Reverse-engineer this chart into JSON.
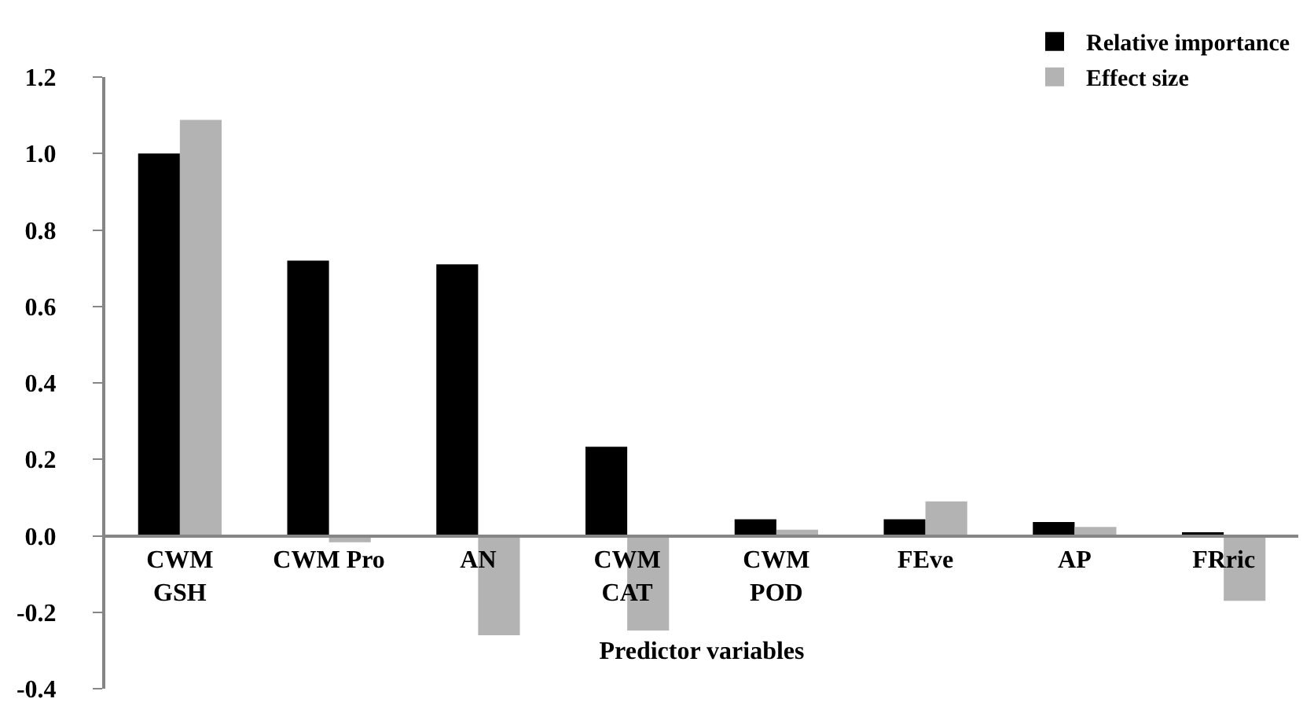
{
  "chart_data": {
    "type": "bar",
    "xlabel": "Predictor variables",
    "categories": [
      "CWM\nGSH",
      "CWM Pro",
      "AN",
      "CWM\nCAT",
      "CWM\nPOD",
      "FEve",
      "AP",
      "FRric"
    ],
    "series": [
      {
        "name": "Relative importance",
        "color": "#000000",
        "values": [
          1.0,
          0.72,
          0.71,
          0.233,
          0.043,
          0.043,
          0.036,
          0.009
        ]
      },
      {
        "name": "Effect size",
        "color": "#b3b3b3",
        "values": [
          1.088,
          -0.017,
          -0.26,
          -0.248,
          0.016,
          0.09,
          0.023,
          -0.17
        ]
      }
    ],
    "ylim": [
      -0.4,
      1.2
    ],
    "yticks": [
      {
        "value": -0.4,
        "label": "-0.4"
      },
      {
        "value": -0.2,
        "label": "-0.2"
      },
      {
        "value": 0,
        "label": "0.0"
      },
      {
        "value": 0.2,
        "label": "0.2"
      },
      {
        "value": 0.4,
        "label": "0.4"
      },
      {
        "value": 0.6,
        "label": "0.6"
      },
      {
        "value": 0.8,
        "label": "0.8"
      },
      {
        "value": 1,
        "label": "1.0"
      },
      {
        "value": 1.2,
        "label": "1.2"
      }
    ],
    "grid": false,
    "legend": "top right"
  }
}
